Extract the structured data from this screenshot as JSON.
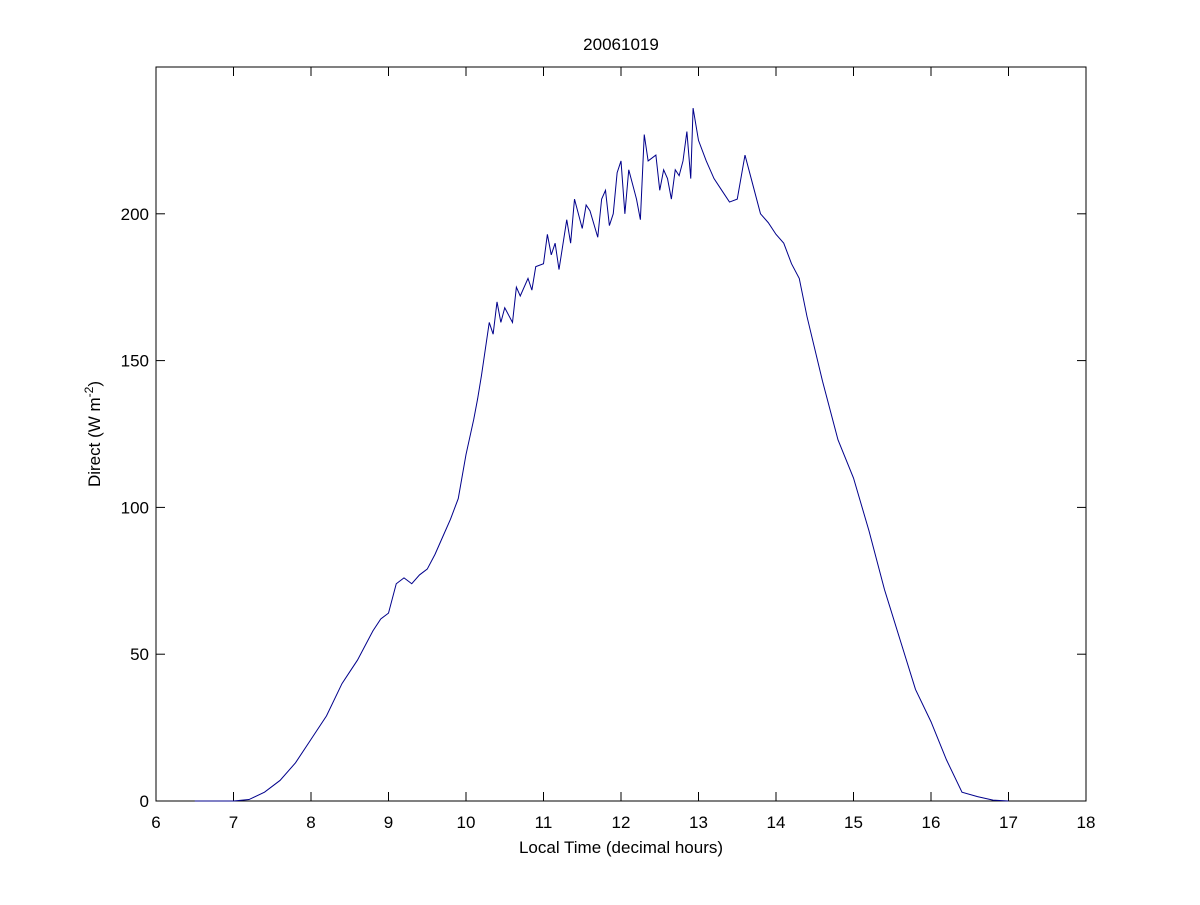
{
  "chart_data": {
    "type": "line",
    "title": "20061019",
    "xlabel": "Local Time (decimal hours)",
    "ylabel": {
      "text": "Direct (W m",
      "sup": "-2",
      "end": ")"
    },
    "x": [
      6.5,
      7.0,
      7.2,
      7.4,
      7.6,
      7.8,
      8.0,
      8.2,
      8.4,
      8.5,
      8.6,
      8.8,
      8.9,
      9.0,
      9.1,
      9.2,
      9.3,
      9.4,
      9.5,
      9.6,
      9.7,
      9.8,
      9.9,
      10.0,
      10.1,
      10.15,
      10.2,
      10.3,
      10.35,
      10.4,
      10.45,
      10.5,
      10.6,
      10.65,
      10.7,
      10.8,
      10.85,
      10.9,
      11.0,
      11.05,
      11.1,
      11.15,
      11.2,
      11.3,
      11.35,
      11.4,
      11.5,
      11.55,
      11.6,
      11.7,
      11.75,
      11.8,
      11.85,
      11.9,
      11.95,
      12.0,
      12.05,
      12.1,
      12.2,
      12.25,
      12.3,
      12.35,
      12.45,
      12.5,
      12.55,
      12.6,
      12.65,
      12.7,
      12.75,
      12.8,
      12.85,
      12.9,
      12.93,
      13.0,
      13.1,
      13.2,
      13.3,
      13.4,
      13.5,
      13.6,
      13.7,
      13.8,
      13.9,
      14.0,
      14.1,
      14.2,
      14.3,
      14.4,
      14.6,
      14.8,
      15.0,
      15.2,
      15.4,
      15.6,
      15.8,
      16.0,
      16.2,
      16.4,
      16.6,
      16.8,
      17.0
    ],
    "values": [
      0,
      0,
      0.5,
      3,
      7,
      13,
      21,
      29,
      40,
      44,
      48,
      58,
      62,
      64,
      74,
      76,
      74,
      77,
      79,
      84,
      90,
      96,
      103,
      118,
      130,
      137,
      145,
      163,
      159,
      170,
      163,
      168,
      163,
      175,
      172,
      178,
      174,
      182,
      183,
      193,
      186,
      190,
      181,
      198,
      190,
      205,
      195,
      203,
      201,
      192,
      205,
      208,
      196,
      200,
      214,
      218,
      200,
      215,
      205,
      198,
      227,
      218,
      220,
      208,
      215,
      212,
      205,
      215,
      213,
      218,
      228,
      212,
      236,
      225,
      218,
      212,
      208,
      204,
      205,
      220,
      210,
      200,
      197,
      193,
      190,
      183,
      178,
      165,
      143,
      123,
      110,
      92,
      72,
      55,
      38,
      27,
      14,
      3,
      1.5,
      0.3,
      0
    ],
    "color": "#00008b",
    "xlim": [
      6,
      18
    ],
    "xticks": [
      6,
      7,
      8,
      9,
      10,
      11,
      12,
      13,
      14,
      15,
      16,
      17,
      18
    ],
    "ylim": [
      0,
      250
    ],
    "yticks": [
      0,
      50,
      100,
      150,
      200
    ]
  }
}
